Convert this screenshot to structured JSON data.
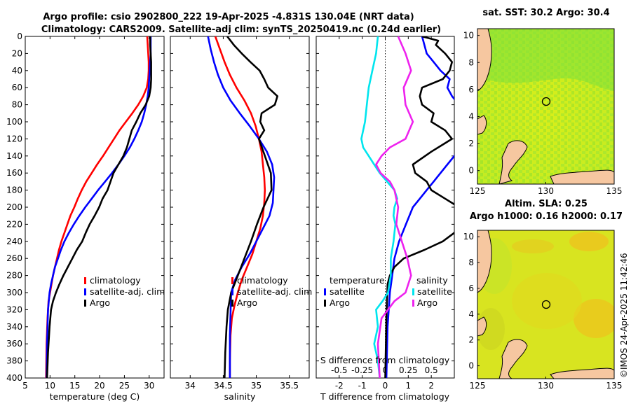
{
  "title": {
    "line1": "Argo profile: csio 2902800_222 19-Apr-2025 -4.831S 130.04E (NRT data)",
    "line2": "Climatology: CARS2009. Satellite-adj clim: synTS_20250419.nc (0.24d earlier)"
  },
  "watermark": "©IMOS 24-Apr-2025 11:42:46",
  "colors": {
    "climatology": "#ff0000",
    "satellite": "#0000ff",
    "argo": "#000000",
    "cyan": "#00e5ee",
    "magenta": "#ee22ee"
  },
  "depth_axis": {
    "ylim": [
      0,
      400
    ],
    "ticks": [
      "0",
      "20",
      "40",
      "60",
      "80",
      "100",
      "120",
      "140",
      "160",
      "180",
      "200",
      "220",
      "240",
      "260",
      "280",
      "300",
      "320",
      "340",
      "360",
      "380",
      "400"
    ]
  },
  "chart_data": [
    {
      "type": "line",
      "id": "temperature",
      "xlabel": "temperature (deg C)",
      "xlim": [
        5,
        33
      ],
      "xticks": [
        5,
        10,
        15,
        20,
        25,
        30
      ],
      "xtick_labels": [
        "5",
        "10",
        "15",
        "20",
        "25",
        "30"
      ],
      "legend": [
        "climatology",
        "satellite-adj. clim",
        "Argo"
      ],
      "series": [
        {
          "name": "climatology",
          "color": "#ff0000",
          "x": [
            29.6,
            29.7,
            29.8,
            29.9,
            29.9,
            29.8,
            29.5,
            28.8,
            27.8,
            26.6,
            25.3,
            24.0,
            22.9,
            21.8,
            20.7,
            19.5,
            18.4,
            17.3,
            16.4,
            15.6,
            14.9,
            14.1,
            13.5,
            12.9,
            12.3,
            11.8,
            11.4,
            11.0,
            10.6,
            10.3,
            10.0,
            9.7,
            9.5,
            9.3,
            9.2
          ],
          "y": [
            0,
            10,
            20,
            30,
            40,
            50,
            60,
            70,
            80,
            90,
            100,
            110,
            120,
            130,
            140,
            150,
            160,
            170,
            180,
            190,
            200,
            210,
            220,
            230,
            240,
            250,
            260,
            270,
            280,
            290,
            300,
            310,
            330,
            360,
            400
          ]
        },
        {
          "name": "satellite-adj. clim",
          "color": "#0000ff",
          "x": [
            30.3,
            30.3,
            30.3,
            30.2,
            30.1,
            30.0,
            29.9,
            29.7,
            29.4,
            29.0,
            28.5,
            27.8,
            27.0,
            26.1,
            25.0,
            23.8,
            22.5,
            21.1,
            19.7,
            18.4,
            17.1,
            15.9,
            14.8,
            13.8,
            12.9,
            12.2,
            11.6,
            11.0,
            10.6,
            10.2,
            9.9,
            9.6,
            9.4,
            9.3
          ],
          "y": [
            0,
            10,
            20,
            30,
            40,
            50,
            60,
            70,
            80,
            90,
            100,
            110,
            120,
            130,
            140,
            150,
            160,
            170,
            180,
            190,
            200,
            210,
            220,
            230,
            240,
            250,
            260,
            270,
            280,
            290,
            300,
            320,
            360,
            400
          ]
        },
        {
          "name": "Argo",
          "color": "#000000",
          "x": [
            30.2,
            30.2,
            30.3,
            30.4,
            30.4,
            30.4,
            30.3,
            30.0,
            29.3,
            28.2,
            27.4,
            26.5,
            26.0,
            25.5,
            24.8,
            23.8,
            22.8,
            22.2,
            21.6,
            20.6,
            19.9,
            19.0,
            18.0,
            17.2,
            16.5,
            15.4,
            14.5,
            13.6,
            12.7,
            11.9,
            11.2,
            10.6,
            10.2,
            9.9,
            9.6,
            9.4
          ],
          "y": [
            0,
            10,
            20,
            30,
            40,
            50,
            60,
            70,
            80,
            90,
            100,
            110,
            120,
            130,
            140,
            150,
            160,
            170,
            180,
            190,
            200,
            210,
            220,
            230,
            240,
            250,
            260,
            270,
            280,
            290,
            300,
            310,
            320,
            340,
            370,
            400
          ]
        }
      ]
    },
    {
      "type": "line",
      "id": "salinity",
      "xlabel": "salinity",
      "xlim": [
        33.7,
        35.8
      ],
      "xticks": [
        34,
        34.5,
        35,
        35.5
      ],
      "xtick_labels": [
        "34",
        "34.5",
        "35",
        "35.5"
      ],
      "legend": [
        "climatology",
        "satellite-adj. clim",
        "Argo"
      ],
      "series": [
        {
          "name": "climatology",
          "color": "#ff0000",
          "x": [
            34.38,
            34.45,
            34.52,
            34.6,
            34.7,
            34.82,
            34.92,
            34.99,
            35.04,
            35.08,
            35.1,
            35.12,
            35.13,
            35.12,
            35.1,
            35.06,
            35.0,
            34.94,
            34.86,
            34.78,
            34.72,
            34.67,
            34.63,
            34.61,
            34.6,
            34.6
          ],
          "y": [
            0,
            15,
            30,
            45,
            60,
            75,
            90,
            105,
            120,
            135,
            150,
            165,
            180,
            195,
            210,
            225,
            240,
            255,
            270,
            285,
            300,
            315,
            330,
            350,
            380,
            400
          ]
        },
        {
          "name": "satellite-adj. clim",
          "color": "#0000ff",
          "x": [
            34.27,
            34.31,
            34.36,
            34.42,
            34.5,
            34.61,
            34.75,
            34.9,
            35.04,
            35.16,
            35.24,
            35.27,
            35.26,
            35.25,
            35.2,
            35.1,
            35.0,
            34.9,
            34.78,
            34.68,
            34.62,
            34.6,
            34.6
          ],
          "y": [
            0,
            15,
            30,
            45,
            60,
            75,
            90,
            105,
            120,
            135,
            150,
            165,
            180,
            195,
            210,
            225,
            240,
            255,
            270,
            285,
            300,
            350,
            400
          ]
        },
        {
          "name": "Argo",
          "color": "#000000",
          "x": [
            34.56,
            34.66,
            34.78,
            34.91,
            35.05,
            35.12,
            35.18,
            35.32,
            35.28,
            35.08,
            35.06,
            35.12,
            35.04,
            35.13,
            35.22,
            35.23,
            35.11,
            35.01,
            34.92,
            34.82,
            34.72,
            34.62,
            34.57,
            34.55,
            34.53,
            34.52
          ],
          "y": [
            0,
            10,
            20,
            30,
            40,
            50,
            60,
            70,
            80,
            90,
            100,
            110,
            120,
            140,
            160,
            180,
            200,
            220,
            240,
            260,
            280,
            300,
            320,
            340,
            370,
            400
          ]
        }
      ]
    },
    {
      "type": "line",
      "id": "difference",
      "xlabel": "T difference from climatology",
      "x2label": "S difference from climatology",
      "xlim": [
        -3,
        3
      ],
      "xticks": [
        -2,
        -1,
        0,
        1,
        2
      ],
      "xtick_labels": [
        "-2",
        "-1",
        "0",
        "1",
        "2"
      ],
      "x2lim": [
        -0.75,
        0.75
      ],
      "x2ticks": [
        -0.5,
        -0.25,
        0,
        0.25,
        0.5
      ],
      "x2tick_labels": [
        "-0.5",
        "-0.25",
        "0",
        "0.25",
        "0.5"
      ],
      "legend_temperature_title": "temperature",
      "legend_salinity_title": "salinity",
      "legend": {
        "temperature_satellite": "satellite",
        "temperature_argo": "Argo",
        "salinity_satellite": "satellite",
        "salinity_argo": "Argo"
      },
      "series": [
        {
          "name": "temperature satellite",
          "color": "#0000ff",
          "axis": "T",
          "x": [
            1.6,
            1.7,
            1.8,
            2.1,
            2.4,
            2.8,
            2.7,
            2.9,
            3.2,
            3.4,
            3.6,
            3.8,
            3.5,
            3.2,
            3.0,
            2.7,
            2.4,
            2.1,
            1.8,
            1.5,
            1.2,
            0.9,
            0.6,
            0.4,
            0.3,
            0.2,
            0.1,
            0.05
          ],
          "y": [
            0,
            10,
            20,
            30,
            40,
            50,
            60,
            70,
            80,
            90,
            100,
            110,
            120,
            130,
            140,
            150,
            160,
            170,
            180,
            190,
            200,
            220,
            240,
            260,
            280,
            300,
            340,
            400
          ]
        },
        {
          "name": "temperature Argo",
          "color": "#000000",
          "axis": "T",
          "x": [
            1.6,
            2.3,
            2.2,
            2.6,
            2.9,
            2.8,
            2.5,
            1.6,
            1.5,
            1.6,
            2.1,
            2.0,
            2.6,
            2.9,
            2.0,
            1.2,
            1.3,
            1.8,
            2.0,
            2.6,
            3.2,
            3.4,
            3.2,
            3.0,
            2.5,
            1.7,
            0.8,
            0.4,
            0.2,
            0.1,
            0.05,
            0.0
          ],
          "y": [
            0,
            5,
            10,
            20,
            30,
            40,
            50,
            60,
            70,
            80,
            90,
            100,
            110,
            120,
            135,
            150,
            160,
            170,
            180,
            190,
            200,
            210,
            220,
            230,
            240,
            250,
            260,
            270,
            280,
            290,
            330,
            400
          ]
        },
        {
          "name": "salinity satellite",
          "color": "#00e5ee",
          "axis": "S",
          "x": [
            -0.08,
            -0.1,
            -0.14,
            -0.18,
            -0.2,
            -0.22,
            -0.26,
            -0.24,
            -0.18,
            -0.12,
            -0.06,
            0.02,
            0.1,
            0.13,
            0.1,
            0.09,
            0.11,
            0.09,
            0.06,
            0.06,
            0.03,
            -0.03,
            -0.1,
            -0.08,
            -0.12,
            -0.1,
            -0.08,
            -0.06
          ],
          "y": [
            0,
            20,
            40,
            60,
            80,
            100,
            120,
            130,
            140,
            150,
            160,
            170,
            180,
            190,
            200,
            210,
            220,
            240,
            260,
            280,
            300,
            310,
            320,
            340,
            360,
            370,
            380,
            400
          ]
        },
        {
          "name": "salinity Argo",
          "color": "#ee22ee",
          "axis": "S",
          "x": [
            0.14,
            0.22,
            0.28,
            0.2,
            0.22,
            0.3,
            0.22,
            0.05,
            -0.04,
            -0.1,
            -0.05,
            0.05,
            0.1,
            0.14,
            0.12,
            0.18,
            0.24,
            0.28,
            0.22,
            0.1,
            -0.04,
            -0.08,
            -0.06
          ],
          "y": [
            0,
            20,
            40,
            60,
            80,
            100,
            120,
            130,
            140,
            150,
            160,
            170,
            180,
            200,
            220,
            240,
            260,
            280,
            300,
            310,
            330,
            360,
            400
          ]
        }
      ]
    },
    {
      "type": "heatmap",
      "id": "sst-map",
      "title": "sat. SST: 30.2 Argo: 30.4",
      "xlim": [
        125,
        135
      ],
      "ylim": [
        -1,
        10.5
      ],
      "xticks": [
        125,
        130,
        135
      ],
      "xtick_labels": [
        "125",
        "130",
        "135"
      ],
      "yticks": [
        0,
        2,
        4,
        6,
        8,
        10
      ],
      "ytick_labels": [
        "0",
        "2",
        "4",
        "6",
        "8",
        "10"
      ],
      "marker": {
        "lon": 130.04,
        "lat": 4.83
      }
    },
    {
      "type": "heatmap",
      "id": "sla-map",
      "title_line1": "Altim. SLA: 0.25",
      "title_line2": "Argo h1000: 0.16 h2000: 0.17",
      "xlim": [
        125,
        135
      ],
      "ylim": [
        -1,
        10.5
      ],
      "xticks": [
        125,
        130,
        135
      ],
      "xtick_labels": [
        "125",
        "130",
        "135"
      ],
      "yticks": [
        0,
        2,
        4,
        6,
        8,
        10
      ],
      "ytick_labels": [
        "0",
        "2",
        "4",
        "6",
        "8",
        "10"
      ],
      "marker": {
        "lon": 130.04,
        "lat": 4.83
      }
    }
  ]
}
